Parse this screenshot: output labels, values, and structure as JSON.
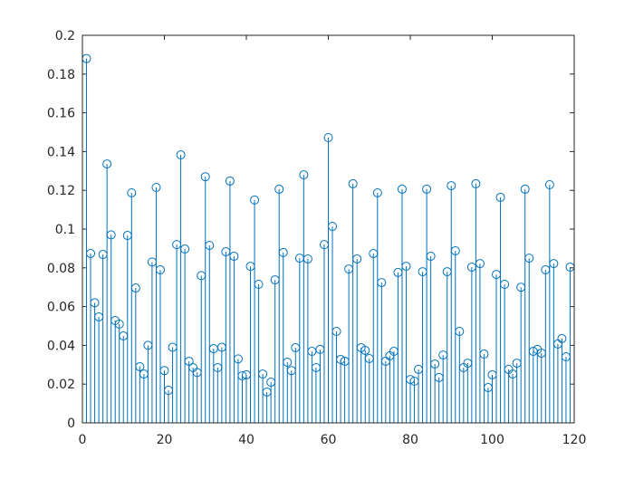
{
  "chart_data": {
    "type": "stem",
    "x": [
      1,
      2,
      3,
      4,
      5,
      6,
      7,
      8,
      9,
      10,
      11,
      12,
      13,
      14,
      15,
      16,
      17,
      18,
      19,
      20,
      21,
      22,
      23,
      24,
      25,
      26,
      27,
      28,
      29,
      30,
      31,
      32,
      33,
      34,
      35,
      36,
      37,
      38,
      39,
      40,
      41,
      42,
      43,
      44,
      45,
      46,
      47,
      48,
      49,
      50,
      51,
      52,
      53,
      54,
      55,
      56,
      57,
      58,
      59,
      60,
      61,
      62,
      63,
      64,
      65,
      66,
      67,
      68,
      69,
      70,
      71,
      72,
      73,
      74,
      75,
      76,
      77,
      78,
      79,
      80,
      81,
      82,
      83,
      84,
      85,
      86,
      87,
      88,
      89,
      90,
      91,
      92,
      93,
      94,
      95,
      96,
      97,
      98,
      99,
      100,
      101,
      102,
      103,
      104,
      105,
      106,
      107,
      108,
      109,
      110,
      111,
      112,
      113,
      114,
      115,
      116,
      117,
      118,
      119
    ],
    "values": [
      0.188,
      0.0874,
      0.062,
      0.0547,
      0.0869,
      0.1336,
      0.097,
      0.0528,
      0.051,
      0.0449,
      0.0967,
      0.1187,
      0.0696,
      0.029,
      0.0252,
      0.04,
      0.083,
      0.1215,
      0.079,
      0.027,
      0.0168,
      0.039,
      0.092,
      0.1383,
      0.0897,
      0.0318,
      0.0285,
      0.026,
      0.076,
      0.127,
      0.0916,
      0.0383,
      0.0285,
      0.039,
      0.0883,
      0.1248,
      0.086,
      0.033,
      0.0243,
      0.0248,
      0.0808,
      0.115,
      0.0715,
      0.0252,
      0.0159,
      0.021,
      0.0738,
      0.1206,
      0.0879,
      0.0313,
      0.027,
      0.0388,
      0.085,
      0.128,
      0.0846,
      0.0369,
      0.0285,
      0.0379,
      0.092,
      0.1472,
      0.1014,
      0.0472,
      0.0327,
      0.0318,
      0.0794,
      0.1234,
      0.0846,
      0.0388,
      0.0374,
      0.0332,
      0.0874,
      0.1187,
      0.0724,
      0.0318,
      0.0346,
      0.0369,
      0.0776,
      0.1206,
      0.0808,
      0.0224,
      0.0215,
      0.0276,
      0.078,
      0.1206,
      0.086,
      0.0304,
      0.0234,
      0.035,
      0.078,
      0.1224,
      0.0888,
      0.0472,
      0.0285,
      0.0308,
      0.0804,
      0.1234,
      0.0822,
      0.0355,
      0.0182,
      0.0248,
      0.0766,
      0.1164,
      0.0715,
      0.0276,
      0.0252,
      0.0308,
      0.07,
      0.1206,
      0.085,
      0.0369,
      0.0379,
      0.036,
      0.079,
      0.1229,
      0.0822,
      0.0407,
      0.0435,
      0.0341,
      0.0804
    ],
    "color": "#0072bd",
    "xlim": [
      0,
      120
    ],
    "ylim": [
      0,
      0.2
    ],
    "xticks": [
      0,
      20,
      40,
      60,
      80,
      100,
      120
    ],
    "yticks": [
      0,
      0.02,
      0.04,
      0.06,
      0.08,
      0.1,
      0.12,
      0.14,
      0.16,
      0.18,
      0.2
    ],
    "grid": false
  }
}
